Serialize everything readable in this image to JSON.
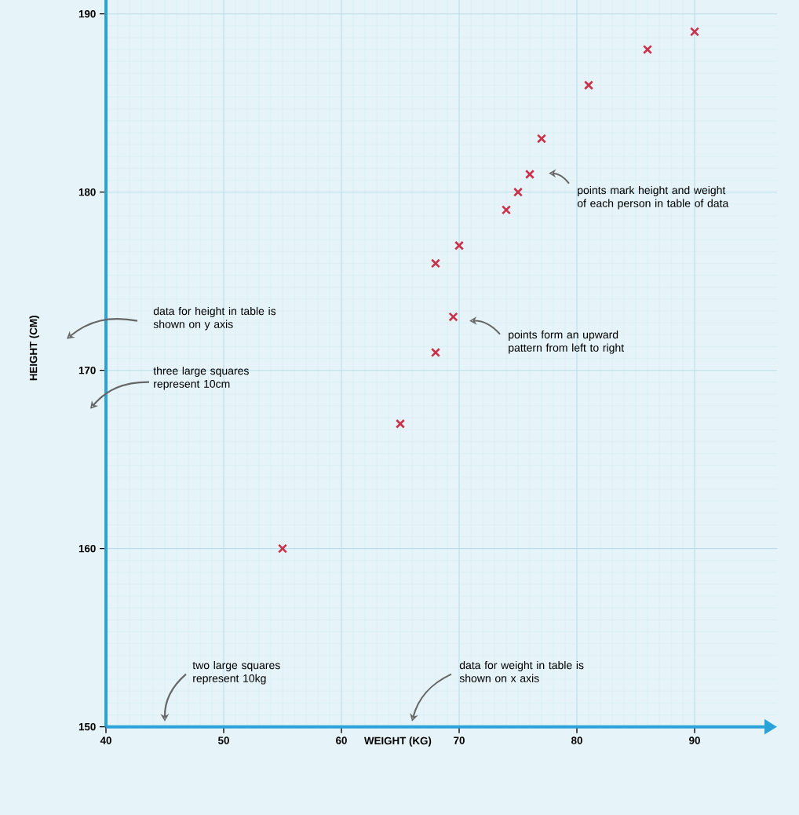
{
  "chart_data": {
    "type": "scatter",
    "xlabel": "WEIGHT (KG)",
    "ylabel": "HEIGHT (CM)",
    "x": [
      55,
      65,
      68,
      69.5,
      68,
      70,
      74,
      75,
      76,
      77,
      81,
      86,
      90
    ],
    "values": [
      160,
      167,
      171,
      173,
      176,
      177,
      179,
      180,
      181,
      183,
      186,
      188,
      189
    ],
    "color": "#c8324b",
    "marker": "cross",
    "xlim": [
      40,
      97
    ],
    "ylim": [
      150,
      191.5
    ],
    "xticks": [
      40,
      50,
      60,
      70,
      80,
      90
    ],
    "yticks": [
      150,
      160,
      170,
      180,
      190
    ],
    "grid": true,
    "annotations": [
      "data for height in table is shown on y axis",
      "three large squares represent 10cm",
      "two large squares represent 10kg",
      "data for weight in table is shown on x axis",
      "points form an upward pattern from left to right",
      "points mark height and weight of each person in table of data"
    ]
  }
}
